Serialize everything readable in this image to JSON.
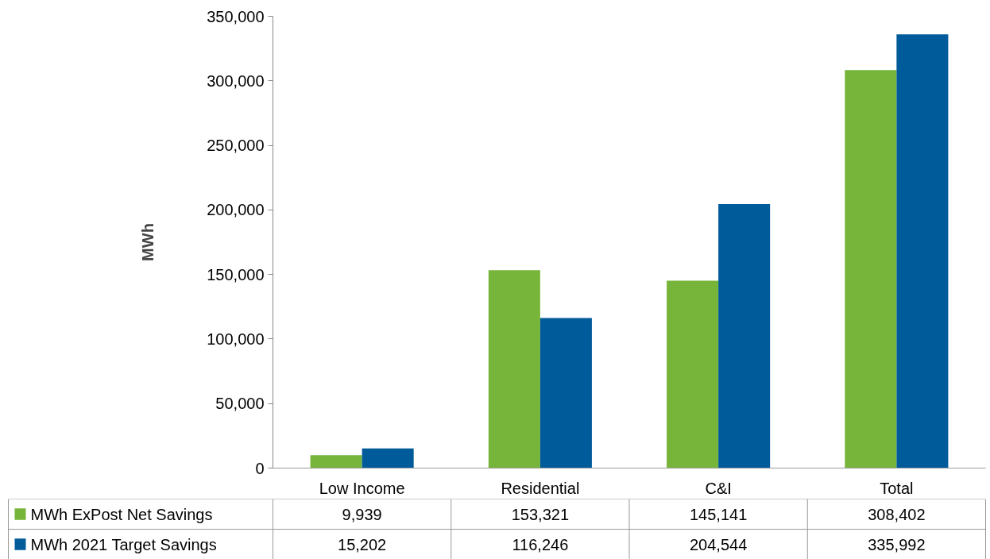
{
  "chart_data": {
    "type": "bar",
    "ylabel": "MWh",
    "categories": [
      "Low Income",
      "Residential",
      "C&I",
      "Total"
    ],
    "series": [
      {
        "name": "MWh ExPost Net Savings",
        "color": "#76b539",
        "values": [
          9939,
          153321,
          145141,
          308402
        ],
        "value_labels": [
          "9,939",
          "153,321",
          "145,141",
          "308,402"
        ]
      },
      {
        "name": "MWh 2021 Target Savings",
        "color": "#005b9b",
        "values": [
          15202,
          116246,
          204544,
          335992
        ],
        "value_labels": [
          "15,202",
          "116,246",
          "204,544",
          "335,992"
        ]
      }
    ],
    "ylim": [
      0,
      350000
    ],
    "yticks": [
      0,
      {
        "value": 50000,
        "label": "50,000"
      },
      {
        "value": 100000,
        "label": "100,000"
      },
      {
        "value": 150000,
        "label": "150,000"
      },
      {
        "value": 200000,
        "label": "200,000"
      },
      {
        "value": 250000,
        "label": "250,000"
      },
      {
        "value": 300000,
        "label": "300,000"
      },
      {
        "value": 350000,
        "label": "350,000"
      }
    ],
    "grid": false,
    "legend": "bottom"
  }
}
